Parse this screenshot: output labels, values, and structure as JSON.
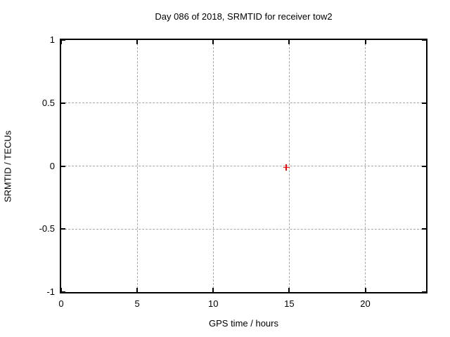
{
  "title": "Day 086 of 2018, SRMTID for receiver tow2",
  "chart_data": {
    "type": "scatter",
    "title": "Day 086 of 2018, SRMTID for receiver tow2",
    "xlabel": "GPS time / hours",
    "ylabel": "SRMTID / TECUs",
    "xlim": [
      0,
      24
    ],
    "ylim": [
      -1,
      1
    ],
    "xticks": [
      0,
      5,
      10,
      15,
      20
    ],
    "xtick_labels": [
      "0",
      "5",
      "10",
      "15",
      "20"
    ],
    "yticks": [
      -1,
      -0.5,
      0,
      0.5,
      1
    ],
    "ytick_labels": [
      "-1",
      "-0.5",
      "0",
      "0.5",
      "1"
    ],
    "grid": true,
    "legend": "none",
    "series": [
      {
        "name": "SRMTID",
        "marker": "plus",
        "color": "#ff0000",
        "points": [
          {
            "x": 14.8,
            "y": -0.01
          }
        ]
      }
    ]
  },
  "colors": {
    "background": "#ffffff",
    "border": "#000000",
    "grid": "#a6a6a6",
    "text": "#000000",
    "point": "#ff0000"
  }
}
